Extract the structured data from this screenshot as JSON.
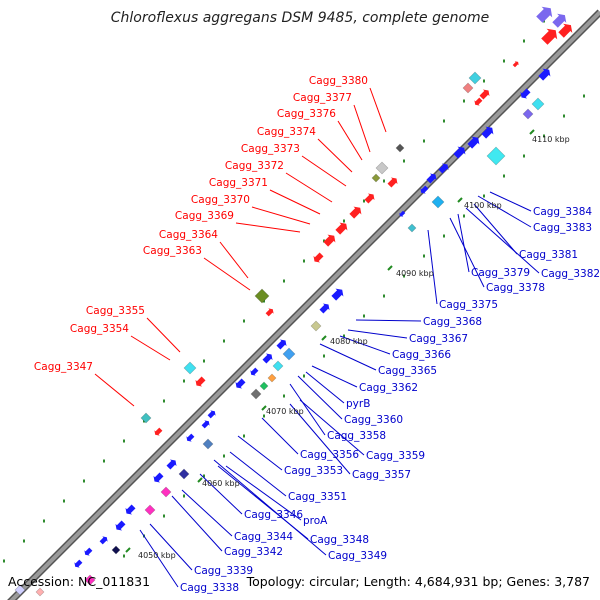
{
  "title": "Chloroflexus aggregans DSM 9485, complete genome",
  "footer": {
    "accession": "Accession: NC_011831",
    "info": "Topology: circular; Length: 4,684,931 bp; Genes: 3,787"
  },
  "colors": {
    "top_strand_label": "#ff0000",
    "bottom_strand_label": "#0000cc",
    "backbone": "#808080",
    "tick_mark": "#228b22"
  },
  "ticks": [
    "4050 kbp",
    "4060 kbp",
    "4070 kbp",
    "4080 kbp",
    "4090 kbp",
    "4100 kbp",
    "4110 kbp"
  ],
  "top_labels": [
    "Cagg_3380",
    "Cagg_3377",
    "Cagg_3376",
    "Cagg_3374",
    "Cagg_3373",
    "Cagg_3372",
    "Cagg_3371",
    "Cagg_3370",
    "Cagg_3369",
    "Cagg_3364",
    "Cagg_3363",
    "Cagg_3355",
    "Cagg_3354",
    "Cagg_3347"
  ],
  "bottom_labels": [
    "Cagg_3384",
    "Cagg_3383",
    "Cagg_3381",
    "Cagg_3382",
    "Cagg_3379",
    "Cagg_3378",
    "Cagg_3375",
    "Cagg_3368",
    "Cagg_3367",
    "Cagg_3366",
    "Cagg_3365",
    "Cagg_3362",
    "pyrB",
    "Cagg_3360",
    "Cagg_3358",
    "Cagg_3359",
    "Cagg_3356",
    "Cagg_3357",
    "Cagg_3353",
    "Cagg_3351",
    "Cagg_3346",
    "proA",
    "Cagg_3344",
    "Cagg_3348",
    "Cagg_3342",
    "Cagg_3349",
    "Cagg_3339",
    "Cagg_3338"
  ]
}
